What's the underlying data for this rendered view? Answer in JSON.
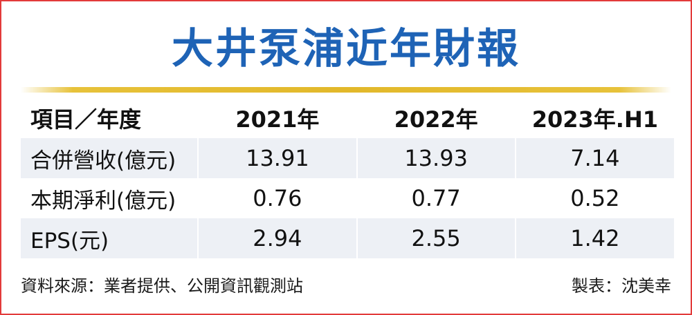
{
  "title": "大井泵浦近年財報",
  "chart_data": {
    "type": "table",
    "title": "大井泵浦近年財報",
    "columns": [
      "項目／年度",
      "2021年",
      "2022年",
      "2023年.H1"
    ],
    "rows": [
      {
        "label": "合併營收(億元)",
        "values": [
          "13.91",
          "13.93",
          "7.14"
        ]
      },
      {
        "label": "本期淨利(億元)",
        "values": [
          "0.76",
          "0.77",
          "0.52"
        ]
      },
      {
        "label": "EPS(元)",
        "values": [
          "2.94",
          "2.55",
          "1.42"
        ]
      }
    ]
  },
  "footer": {
    "source": "資料來源：業者提供、公開資訊觀測站",
    "maker": "製表：沈美幸"
  },
  "colors": {
    "title": "#1e63b6",
    "border": "#e23a3a",
    "rule": "#e2b82a",
    "row_shade": "#edf0f5"
  }
}
